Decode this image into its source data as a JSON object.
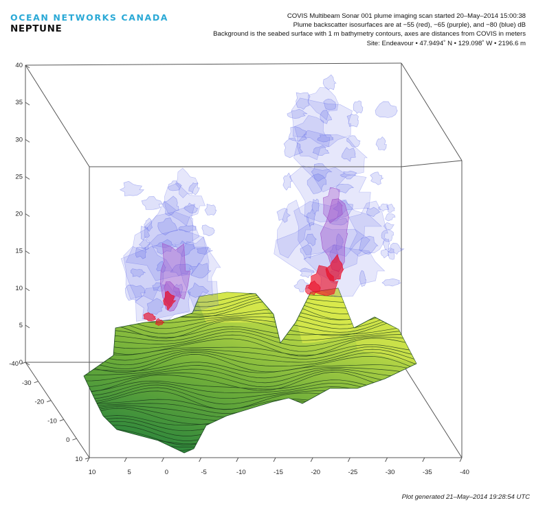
{
  "branding": {
    "org": "OCEAN NETWORKS CANADA",
    "observatory": "NEPTUNE"
  },
  "chart_data": {
    "type": "surface3d",
    "title": "COVIS Multibeam Sonar 001 plume imaging scan started 20–May–2014 15:00:38",
    "subtitle_lines": [
      "Plume backscatter isosurfaces are at −55 (red), −65 (purple), and −80 (blue) dB",
      "Background is the seabed surface with 1 m bathymetry contours, axes are distances from COVIS in meters"
    ],
    "site": "Site: Endeavour  •  47.9494˚ N  •  129.098˚ W  •  2196.6 m",
    "z_ticks": [
      "0",
      "5",
      "10",
      "15",
      "20",
      "25",
      "30",
      "35",
      "40"
    ],
    "z_range": [
      0,
      40
    ],
    "y_ticks": [
      "-40",
      "-30",
      "-20",
      "-10",
      "0",
      "10"
    ],
    "y_range": [
      -40,
      10
    ],
    "x_ticks": [
      "10",
      "5",
      "0",
      "-5",
      "-10",
      "-15",
      "-20",
      "-25",
      "-30",
      "-35",
      "-40"
    ],
    "x_range": [
      10,
      -40
    ],
    "isosurfaces": [
      {
        "level_db": -55,
        "color": "#e8102a"
      },
      {
        "level_db": -65,
        "color": "#a050c8"
      },
      {
        "level_db": -80,
        "color": "#4b57e6"
      }
    ],
    "bathymetry_contour_interval_m": 1,
    "surface_colors": {
      "low": "#1a7a3c",
      "high": "#d6e84a"
    }
  },
  "footer": {
    "generated": "Plot generated 21–May–2014 19:28:54 UTC"
  }
}
